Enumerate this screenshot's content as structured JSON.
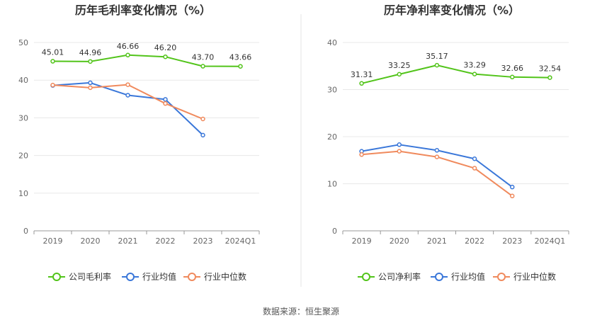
{
  "source_label": "数据来源：恒生聚源",
  "colors": {
    "company": "#52c41a",
    "industry_avg": "#3a77d9",
    "industry_median": "#f08a5d"
  },
  "chart_data": [
    {
      "type": "line",
      "title": "历年毛利率变化情况（%）",
      "categories": [
        "2019",
        "2020",
        "2021",
        "2022",
        "2023",
        "2024Q1"
      ],
      "ylim": [
        0,
        50
      ],
      "yticks": [
        0,
        10,
        20,
        30,
        40,
        50
      ],
      "grid": true,
      "legend_position": "bottom",
      "series": [
        {
          "key": "company",
          "name": "公司毛利率",
          "values": [
            45.01,
            44.96,
            46.66,
            46.2,
            43.7,
            43.66
          ],
          "labels": [
            "45.01",
            "44.96",
            "46.66",
            "46.20",
            "43.70",
            "43.66"
          ]
        },
        {
          "key": "industry_avg",
          "name": "行业均值",
          "values": [
            38.6,
            39.3,
            36.0,
            34.9,
            25.4,
            null
          ]
        },
        {
          "key": "industry_median",
          "name": "行业中位数",
          "values": [
            38.7,
            38.0,
            38.8,
            33.8,
            29.7,
            null
          ]
        }
      ]
    },
    {
      "type": "line",
      "title": "历年净利率变化情况（%）",
      "categories": [
        "2019",
        "2020",
        "2021",
        "2022",
        "2023",
        "2024Q1"
      ],
      "ylim": [
        0,
        40
      ],
      "yticks": [
        0,
        10,
        20,
        30,
        40
      ],
      "grid": true,
      "legend_position": "bottom",
      "series": [
        {
          "key": "company",
          "name": "公司净利率",
          "values": [
            31.31,
            33.25,
            35.17,
            33.29,
            32.66,
            32.54
          ],
          "labels": [
            "31.31",
            "33.25",
            "35.17",
            "33.29",
            "32.66",
            "32.54"
          ]
        },
        {
          "key": "industry_avg",
          "name": "行业均值",
          "values": [
            16.9,
            18.3,
            17.1,
            15.3,
            9.3,
            null
          ]
        },
        {
          "key": "industry_median",
          "name": "行业中位数",
          "values": [
            16.2,
            16.9,
            15.7,
            13.3,
            7.4,
            null
          ]
        }
      ]
    }
  ]
}
